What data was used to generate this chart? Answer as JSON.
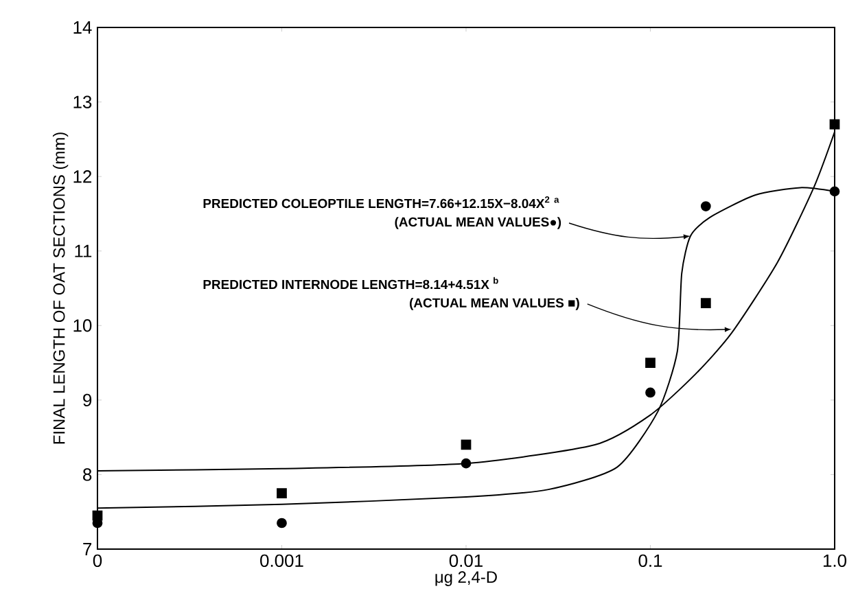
{
  "chart_data": {
    "type": "scatter",
    "xlabel": "μg 2,4-D",
    "ylabel": "FINAL LENGTH OF OAT SECTIONS (mm)",
    "log": "x",
    "xlim": [
      0.0001,
      1
    ],
    "xticks": [
      {
        "value": 0.0001,
        "label": "0"
      },
      0.001,
      0.01,
      0.1,
      {
        "value": 1,
        "label": "1.0"
      }
    ],
    "ylim": [
      7,
      14
    ],
    "yticks": [
      7,
      8,
      9,
      10,
      11,
      12,
      13,
      14
    ],
    "grid": false,
    "series": [
      {
        "marker": "circle",
        "color": "#000000",
        "x": [
          0.0001,
          0.001,
          0.01,
          0.1,
          0.2,
          1
        ],
        "values": [
          7.35,
          7.35,
          8.15,
          9.1,
          11.6,
          11.8
        ]
      },
      {
        "marker": "square",
        "color": "#000000",
        "x": [
          0.0001,
          0.001,
          0.01,
          0.1,
          0.2,
          1
        ],
        "values": [
          7.45,
          7.75,
          8.4,
          9.5,
          10.3,
          12.7
        ]
      },
      {
        "type": "line",
        "marker": "none",
        "color": "#000000",
        "x": [
          0.0001,
          0.001,
          0.01,
          0.028,
          0.066,
          0.11,
          0.14,
          0.148,
          0.165,
          0.21,
          0.37,
          0.65,
          1
        ],
        "values": [
          7.55,
          7.6,
          7.7,
          7.8,
          8.1,
          8.85,
          9.65,
          10.7,
          11.2,
          11.45,
          11.75,
          11.85,
          11.8
        ]
      },
      {
        "type": "line",
        "marker": "none",
        "color": "#000000",
        "x": [
          0.0001,
          0.001,
          0.01,
          0.05,
          0.1,
          0.176,
          0.276,
          0.49,
          0.77,
          1
        ],
        "values": [
          8.05,
          8.08,
          8.15,
          8.4,
          8.8,
          9.35,
          9.9,
          10.85,
          11.85,
          12.6
        ]
      }
    ],
    "annotations": [
      "PREDICTED  COLEOPTILE LENGTH=7.66+12.15X−8.04X$^{2}$ $^{a}$",
      {
        "text": "(ACTUAL MEAN VALUES●)",
        "x": 0.165,
        "y": 11.2
      },
      "PREDICTED  INTERNODE LENGTH=8.14+4.51X $^{b}$",
      {
        "text": "(ACTUAL MEAN VALUES ■)",
        "x": 0.276,
        "y": 9.95
      }
    ]
  }
}
